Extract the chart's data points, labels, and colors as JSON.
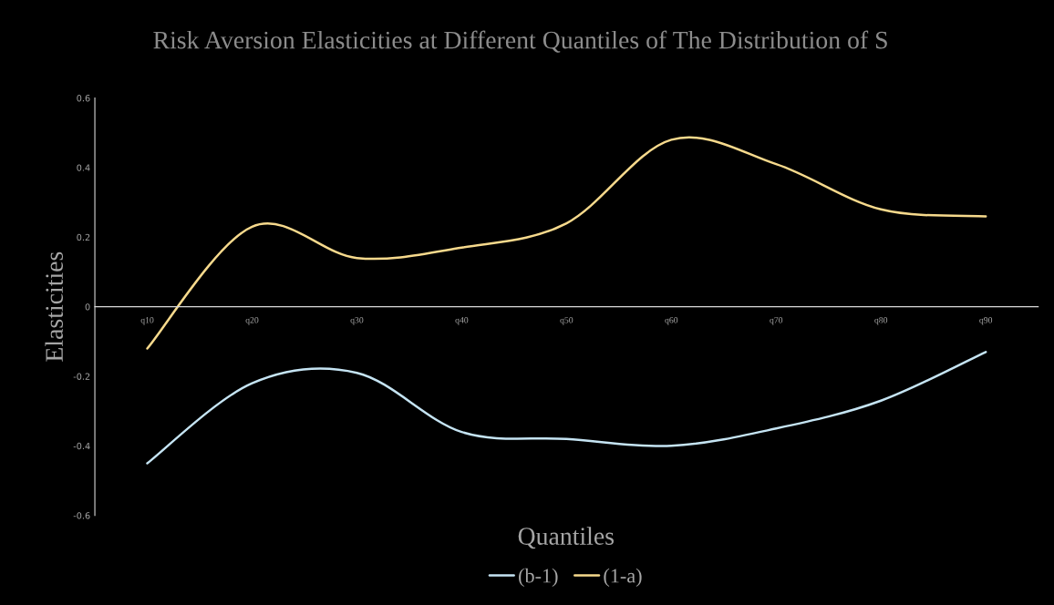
{
  "chart_data": {
    "type": "line",
    "title": "Risk Aversion Elasticities at Different Quantiles of The Distribution of S",
    "xlabel": "Quantiles",
    "ylabel": "Elasticities",
    "categories": [
      "q10",
      "q20",
      "q30",
      "q40",
      "q50",
      "q60",
      "q70",
      "q80",
      "q90"
    ],
    "series": [
      {
        "name": "(b-1)",
        "color": "#c5e4f3",
        "values": [
          -0.45,
          -0.22,
          -0.19,
          -0.36,
          -0.38,
          -0.4,
          -0.35,
          -0.27,
          -0.13
        ]
      },
      {
        "name": "(1-a)",
        "color": "#f6d98c",
        "values": [
          -0.12,
          0.23,
          0.14,
          0.17,
          0.24,
          0.48,
          0.41,
          0.28,
          0.26
        ]
      }
    ],
    "ylim": [
      -0.6,
      0.6
    ],
    "yticks": [
      -0.6,
      -0.4,
      -0.2,
      0,
      0.2,
      0.4,
      0.6
    ],
    "grid": false,
    "legend": "bottom",
    "marker": "none",
    "line_style": "solid"
  }
}
